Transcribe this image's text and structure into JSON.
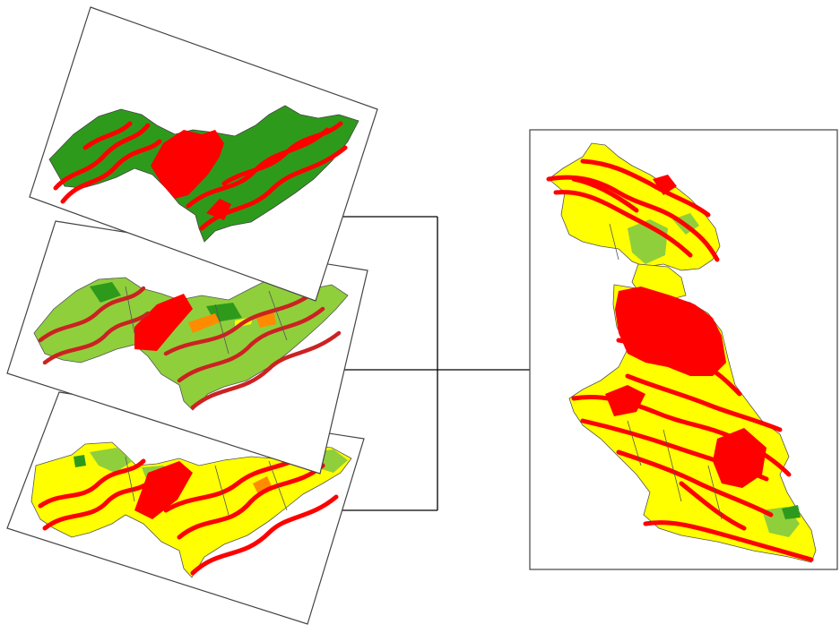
{
  "diagram": {
    "description_visible_text": "",
    "layers": [
      {
        "id": "layer-1",
        "theme": "green-red"
      },
      {
        "id": "layer-2",
        "theme": "lightgreen-red"
      },
      {
        "id": "layer-3",
        "theme": "yellow-red"
      }
    ],
    "result": {
      "id": "combined-result",
      "theme": "yellow-red"
    },
    "colors": {
      "dark_green": "#2e9a1c",
      "light_green": "#8fcf3c",
      "yellow": "#ffff00",
      "red": "#ff0000",
      "orange": "#ff8c00",
      "stroke": "#555555",
      "frame": "#444444",
      "connector": "#000000",
      "background": "#ffffff"
    }
  }
}
